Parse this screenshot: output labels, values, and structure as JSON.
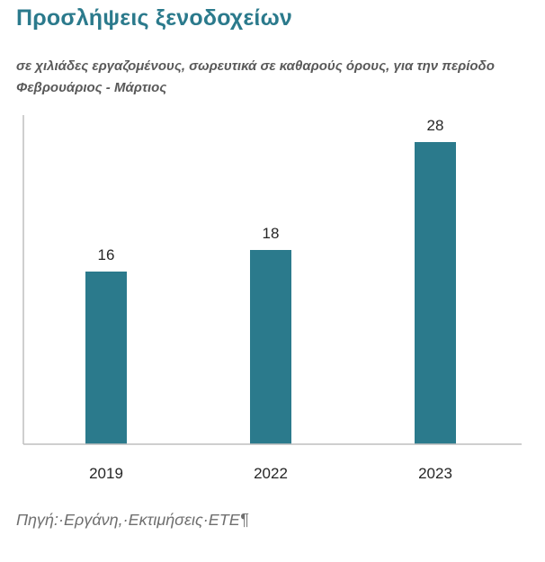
{
  "chart_data": {
    "type": "bar",
    "title": "Προσλήψεις ξενοδοχείων",
    "subtitle": "σε χιλιάδες εργαζομένους, σωρευτικά σε καθαρούς όρους, για την περίοδο Φεβρουάριος - Μάρτιος",
    "categories": [
      "2019",
      "2022",
      "2023"
    ],
    "values": [
      16,
      18,
      28
    ],
    "data_labels": [
      "16",
      "18",
      "28"
    ],
    "xlabel": "",
    "ylabel": "",
    "ylim": [
      0,
      30
    ],
    "grid": false,
    "legend": "none",
    "bar_color": "#2b7a8c",
    "source": "Πηγή:·Εργάνη,·Εκτιμήσεις·ΕΤΕ¶"
  }
}
